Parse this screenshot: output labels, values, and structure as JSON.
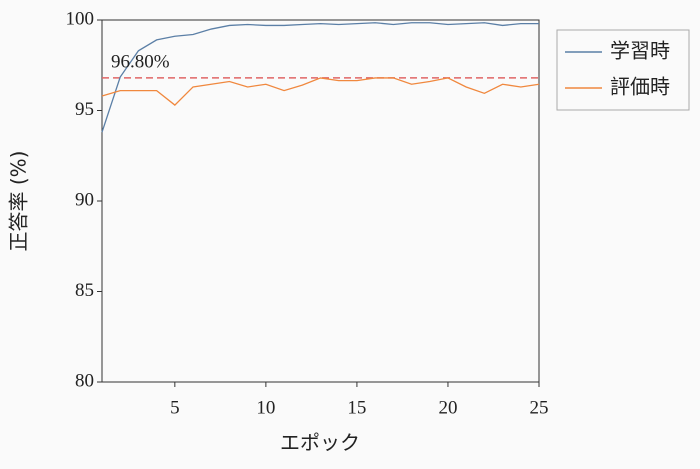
{
  "chart_data": {
    "type": "line",
    "x_label": "エポック",
    "y_label": "正答率 (%)",
    "x": [
      1,
      2,
      3,
      4,
      5,
      6,
      7,
      8,
      9,
      10,
      11,
      12,
      13,
      14,
      15,
      16,
      17,
      18,
      19,
      20,
      21,
      22,
      23,
      24,
      25
    ],
    "series": [
      {
        "name": "学習時",
        "color": "#5b7fa6",
        "values": [
          93.8,
          96.85,
          98.3,
          98.9,
          99.1,
          99.2,
          99.5,
          99.7,
          99.75,
          99.7,
          99.7,
          99.75,
          99.8,
          99.75,
          99.8,
          99.85,
          99.75,
          99.85,
          99.85,
          99.75,
          99.8,
          99.85,
          99.7,
          99.8,
          99.8
        ]
      },
      {
        "name": "評価時",
        "color": "#f0883e",
        "values": [
          95.8,
          96.1,
          96.1,
          96.1,
          95.3,
          96.3,
          96.45,
          96.6,
          96.3,
          96.45,
          96.1,
          96.4,
          96.8,
          96.65,
          96.65,
          96.8,
          96.8,
          96.45,
          96.6,
          96.8,
          96.3,
          95.95,
          96.45,
          96.3,
          96.45
        ]
      }
    ],
    "hline": {
      "value": 96.8,
      "label": "96.80%",
      "color": "#e06666"
    },
    "xlim": [
      1,
      25
    ],
    "xticks": [
      5,
      10,
      15,
      20,
      25
    ],
    "ylim": [
      80,
      100
    ],
    "yticks": [
      80,
      85,
      90,
      95,
      100
    ],
    "legend": "outside-right-top"
  }
}
